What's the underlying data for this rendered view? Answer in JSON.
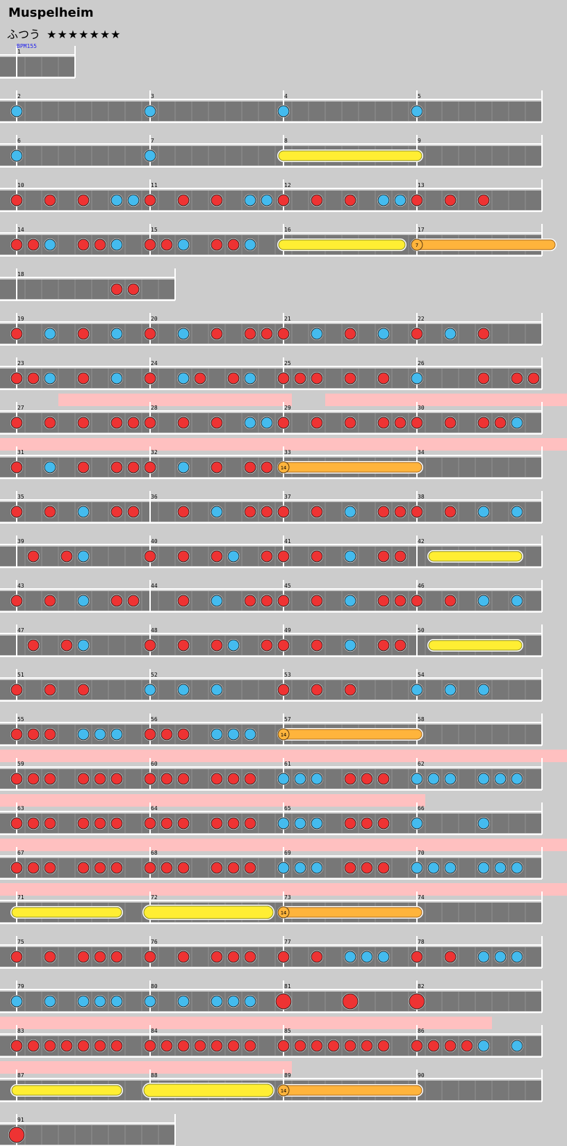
{
  "title": "Muspelheim",
  "difficulty": {
    "label": "ふつう",
    "stars": "★★★★★★★"
  },
  "bpm_label": "BPM155",
  "colors": {
    "background": "#cccccc",
    "lane": "#777777",
    "don": "#ee3333",
    "ka": "#44bbee",
    "drumroll": "#ffee33",
    "balloon": "#ffb43c",
    "gogo": "#ffc0c0",
    "bpm_text": "#2020ee"
  },
  "rows": [
    {
      "measures": [
        {
          "n": "1",
          "slots": 4
        }
      ],
      "notes": "",
      "balloons": []
    },
    {
      "measures": [
        {
          "n": "2"
        },
        {
          "n": "3"
        },
        {
          "n": "4"
        },
        {
          "n": "5"
        }
      ],
      "notes": "k.......k.......k.......k.......",
      "balloons": []
    },
    {
      "measures": [
        {
          "n": "6"
        },
        {
          "n": "7"
        },
        {
          "n": "8"
        },
        {
          "n": "9"
        }
      ],
      "notes": "k.......k.......5.......8.......",
      "balloons": []
    },
    {
      "measures": [
        {
          "n": "10"
        },
        {
          "n": "11"
        },
        {
          "n": "12"
        },
        {
          "n": "13"
        }
      ],
      "notes": "d.d.d.kkd.d.d.kkd.d.d.kkd.d.d...",
      "balloons": []
    },
    {
      "measures": [
        {
          "n": "14"
        },
        {
          "n": "15"
        },
        {
          "n": "16"
        },
        {
          "n": "17"
        }
      ],
      "notes": "ddk.ddk.ddk.ddk.5......8b.......",
      "balloons": [
        "7"
      ]
    },
    {
      "measures": [
        {
          "n": "18",
          "slots": 10
        }
      ],
      "notes": "8.....dd..",
      "balloons": []
    },
    {
      "measures": [
        {
          "n": "19"
        },
        {
          "n": "20"
        },
        {
          "n": "21"
        },
        {
          "n": "22"
        }
      ],
      "notes": "d.k.d.k.d.k.d.ddd.k.d.k.d.k.d...",
      "balloons": []
    },
    {
      "measures": [
        {
          "n": "23"
        },
        {
          "n": "24"
        },
        {
          "n": "25"
        },
        {
          "n": "26"
        }
      ],
      "notes": "ddk.d.k.d.kd.dk.ddd.d.d.k...d.dd",
      "balloons": []
    },
    {
      "measures": [
        {
          "n": "27"
        },
        {
          "n": "28"
        },
        {
          "n": "29"
        },
        {
          "n": "30"
        }
      ],
      "notes": "d.d.d.ddd.d.d.kkd.d.d.ddd.d.ddk.",
      "balloons": [],
      "gogo": [
        [
          3,
          17
        ],
        [
          19,
          35
        ]
      ]
    },
    {
      "measures": [
        {
          "n": "31"
        },
        {
          "n": "32"
        },
        {
          "n": "33"
        },
        {
          "n": "34"
        }
      ],
      "notes": "d.k.d.ddd.k.d.ddb.......8.......",
      "balloons": [
        "14"
      ],
      "gogo": [
        [
          0,
          35
        ]
      ]
    },
    {
      "measures": [
        {
          "n": "35"
        },
        {
          "n": "36"
        },
        {
          "n": "37"
        },
        {
          "n": "38"
        }
      ],
      "notes": "d.d.k.dd..d.k.ddd.d.k.ddd.d.k.k.",
      "balloons": []
    },
    {
      "measures": [
        {
          "n": "39"
        },
        {
          "n": "40"
        },
        {
          "n": "41"
        },
        {
          "n": "42"
        }
      ],
      "notes": ".d.dk...d.d.dk.dd.d.k.dd.5....8.",
      "balloons": []
    },
    {
      "measures": [
        {
          "n": "43"
        },
        {
          "n": "44"
        },
        {
          "n": "45"
        },
        {
          "n": "46"
        }
      ],
      "notes": "d.d.k.dd..d.k.ddd.d.k.ddd.d.k.k.",
      "balloons": []
    },
    {
      "measures": [
        {
          "n": "47"
        },
        {
          "n": "48"
        },
        {
          "n": "49"
        },
        {
          "n": "50"
        }
      ],
      "notes": ".d.dk...d.d.dk.dd.d.k.dd.5....8.",
      "balloons": []
    },
    {
      "measures": [
        {
          "n": "51"
        },
        {
          "n": "52"
        },
        {
          "n": "53"
        },
        {
          "n": "54"
        }
      ],
      "notes": "d.d.d...k.k.k...d.d.d...k.k.k...",
      "balloons": []
    },
    {
      "measures": [
        {
          "n": "55"
        },
        {
          "n": "56"
        },
        {
          "n": "57"
        },
        {
          "n": "58"
        }
      ],
      "notes": "ddd.kkk.ddd.kkk.b.......8.......",
      "balloons": [
        "14"
      ]
    },
    {
      "measures": [
        {
          "n": "59"
        },
        {
          "n": "60"
        },
        {
          "n": "61"
        },
        {
          "n": "62"
        }
      ],
      "notes": "ddd.ddd.ddd.ddd.kkk.ddd.kkk.kkk.",
      "balloons": [],
      "gogo": [
        [
          0,
          35
        ]
      ]
    },
    {
      "measures": [
        {
          "n": "63"
        },
        {
          "n": "64"
        },
        {
          "n": "65"
        },
        {
          "n": "66"
        }
      ],
      "notes": "ddd.ddd.ddd.ddd.kkk.ddd.k...k...",
      "balloons": [],
      "gogo": [
        [
          0,
          25
        ]
      ]
    },
    {
      "measures": [
        {
          "n": "67"
        },
        {
          "n": "68"
        },
        {
          "n": "69"
        },
        {
          "n": "70"
        }
      ],
      "notes": "ddd.ddd.ddd.ddd.kkk.ddd.kkk.kkk.",
      "balloons": [],
      "gogo": [
        [
          0,
          35
        ]
      ]
    },
    {
      "measures": [
        {
          "n": "71"
        },
        {
          "n": "72"
        },
        {
          "n": "73"
        },
        {
          "n": "74"
        }
      ],
      "notes": "5.....8.6......8b.......8.......",
      "balloons": [
        "14"
      ],
      "gogo": [
        [
          0,
          35
        ]
      ]
    },
    {
      "measures": [
        {
          "n": "75"
        },
        {
          "n": "76"
        },
        {
          "n": "77"
        },
        {
          "n": "78"
        }
      ],
      "notes": "d.d.ddd.d.d.ddd.d.d.kkk.d.d.kkk.",
      "balloons": []
    },
    {
      "measures": [
        {
          "n": "79"
        },
        {
          "n": "80"
        },
        {
          "n": "81"
        },
        {
          "n": "82"
        }
      ],
      "notes": "k.k.kkk.k.k.kkk.D...D...D.......",
      "balloons": []
    },
    {
      "measures": [
        {
          "n": "83"
        },
        {
          "n": "84"
        },
        {
          "n": "85"
        },
        {
          "n": "86"
        }
      ],
      "notes": "ddddddd.ddddddd.ddddddd.ddddk.k.",
      "balloons": [],
      "gogo": [
        [
          0,
          29
        ]
      ]
    },
    {
      "measures": [
        {
          "n": "87"
        },
        {
          "n": "88"
        },
        {
          "n": "89"
        },
        {
          "n": "90"
        }
      ],
      "notes": "5.....8.6......8b.......8.......",
      "balloons": [
        "14"
      ],
      "gogo": [
        [
          0,
          17
        ]
      ]
    },
    {
      "measures": [
        {
          "n": "91",
          "slots": 10
        }
      ],
      "notes": "D.........",
      "balloons": []
    }
  ]
}
